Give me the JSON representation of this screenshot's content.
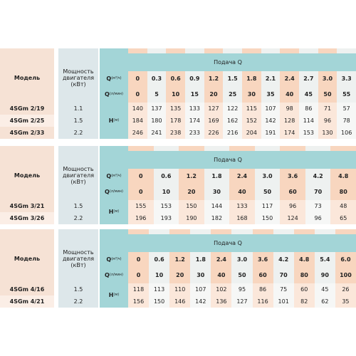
{
  "tables": [
    {
      "header": {
        "model": "Модель",
        "power": "Мощность двигателя (кВт)",
        "flow": "Подача Q"
      },
      "q_m3h": {
        "symbol": "Q",
        "unit": "(м³/ч)",
        "values": [
          "0",
          "0.3",
          "0.6",
          "0.9",
          "1.2",
          "1.5",
          "1.8",
          "2.1",
          "2.4",
          "2.7",
          "3.0",
          "3.3"
        ]
      },
      "q_lmin": {
        "symbol": "Q",
        "unit": "(л/мин)",
        "values": [
          "0",
          "5",
          "10",
          "15",
          "20",
          "25",
          "30",
          "35",
          "40",
          "45",
          "50",
          "55"
        ]
      },
      "head": {
        "symbol": "H",
        "unit": "(м)"
      },
      "rows": [
        {
          "model": "4SGm 2/19",
          "power": "1.1",
          "values": [
            140,
            137,
            135,
            133,
            127,
            122,
            115,
            107,
            98,
            86,
            71,
            57
          ]
        },
        {
          "model": "4SGm 2/25",
          "power": "1.5",
          "values": [
            184,
            180,
            178,
            174,
            169,
            162,
            152,
            142,
            128,
            114,
            96,
            78
          ]
        },
        {
          "model": "4SGm 2/33",
          "power": "2.2",
          "values": [
            246,
            241,
            238,
            233,
            226,
            216,
            204,
            191,
            174,
            153,
            130,
            106
          ]
        }
      ]
    },
    {
      "header": {
        "model": "Модель",
        "power": "Мощность двигателя (кВт)",
        "flow": "Подача Q"
      },
      "q_m3h": {
        "symbol": "Q",
        "unit": "(м³/ч)",
        "values": [
          "0",
          "0.6",
          "1.2",
          "1.8",
          "2.4",
          "3.0",
          "3.6",
          "4.2",
          "4.8"
        ]
      },
      "q_lmin": {
        "symbol": "Q",
        "unit": "(л/мин)",
        "values": [
          "0",
          "10",
          "20",
          "30",
          "40",
          "50",
          "60",
          "70",
          "80"
        ]
      },
      "head": {
        "symbol": "H",
        "unit": "(м)"
      },
      "rows": [
        {
          "model": "4SGm 3/21",
          "power": "1.5",
          "values": [
            155,
            153,
            150,
            144,
            133,
            117,
            96,
            73,
            48
          ]
        },
        {
          "model": "4SGm 3/26",
          "power": "2.2",
          "values": [
            196,
            193,
            190,
            182,
            168,
            150,
            124,
            96,
            65
          ]
        }
      ]
    },
    {
      "header": {
        "model": "Модель",
        "power": "Мощность двигателя (кВт)",
        "flow": "Подача Q"
      },
      "q_m3h": {
        "symbol": "Q",
        "unit": "(м³/ч)",
        "values": [
          "0",
          "0.6",
          "1.2",
          "1.8",
          "2.4",
          "3.0",
          "3.6",
          "4.2",
          "4.8",
          "5.4",
          "6.0"
        ]
      },
      "q_lmin": {
        "symbol": "Q",
        "unit": "(л/мин)",
        "values": [
          "0",
          "10",
          "20",
          "30",
          "40",
          "50",
          "60",
          "70",
          "80",
          "90",
          "100"
        ]
      },
      "head": {
        "symbol": "H",
        "unit": "(м)"
      },
      "rows": [
        {
          "model": "4SGm 4/16",
          "power": "1.5",
          "values": [
            118,
            113,
            110,
            107,
            102,
            95,
            86,
            75,
            60,
            45,
            26
          ]
        },
        {
          "model": "4SGm 4/21",
          "power": "2.2",
          "values": [
            156,
            150,
            146,
            142,
            136,
            127,
            116,
            101,
            82,
            62,
            35
          ]
        }
      ]
    }
  ]
}
